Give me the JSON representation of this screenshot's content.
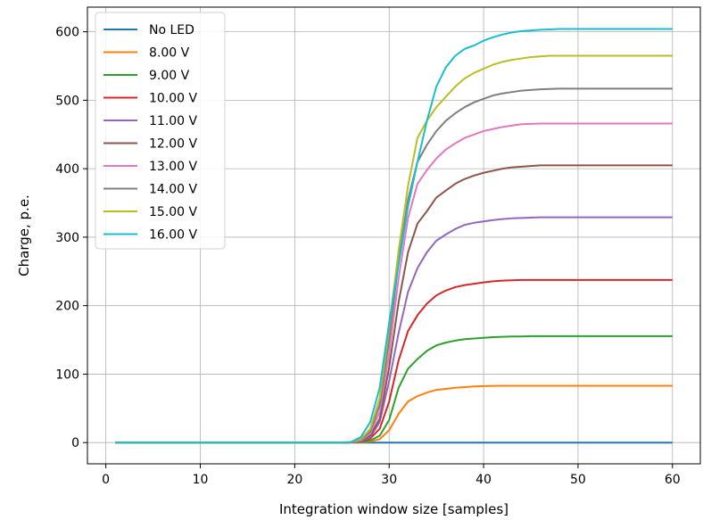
{
  "chart_data": {
    "type": "line",
    "title": "",
    "xlabel": "Integration window size [samples]",
    "ylabel": "Charge, p.e.",
    "xlim": [
      -1.95,
      62.95
    ],
    "ylim": [
      -31,
      636
    ],
    "xticks": [
      0,
      10,
      20,
      30,
      40,
      50,
      60
    ],
    "yticks": [
      0,
      100,
      200,
      300,
      400,
      500,
      600
    ],
    "grid": true,
    "legend_position": "top-left",
    "x": [
      1,
      2,
      3,
      4,
      5,
      6,
      7,
      8,
      9,
      10,
      11,
      12,
      13,
      14,
      15,
      16,
      17,
      18,
      19,
      20,
      21,
      22,
      23,
      24,
      25,
      26,
      27,
      28,
      29,
      30,
      31,
      32,
      33,
      34,
      35,
      36,
      37,
      38,
      39,
      40,
      41,
      42,
      43,
      44,
      45,
      46,
      47,
      48,
      49,
      50,
      51,
      52,
      53,
      54,
      55,
      56,
      57,
      58,
      59,
      60
    ],
    "series": [
      {
        "name": "No LED",
        "color": "#1f77b4",
        "values": [
          0,
          0,
          0,
          0,
          0,
          0,
          0,
          0,
          0,
          0,
          0,
          0,
          0,
          0,
          0,
          0,
          0,
          0,
          0,
          0,
          0,
          0,
          0,
          0,
          0,
          0,
          0,
          0,
          0,
          0,
          0,
          0,
          0,
          0,
          0,
          0,
          0,
          0,
          0,
          0,
          0,
          0,
          0,
          0,
          0,
          0,
          0,
          0,
          0,
          0,
          0,
          0,
          0,
          0,
          0,
          0,
          0,
          0,
          0,
          0
        ]
      },
      {
        "name": "8.00 V",
        "color": "#ff7f0e",
        "values": [
          0,
          0,
          0,
          0,
          0,
          0,
          0,
          0,
          0,
          0,
          0,
          0,
          0,
          0,
          0,
          0,
          0,
          0,
          0,
          0,
          0,
          0,
          0,
          0,
          0,
          0,
          0.3,
          1.5,
          5,
          18,
          42,
          60,
          68,
          73,
          77,
          78.5,
          80,
          81,
          82,
          82.5,
          82.8,
          83,
          83,
          83,
          83,
          83,
          83,
          83,
          83,
          83,
          83,
          83,
          83,
          83,
          83,
          83,
          83,
          83,
          83,
          83
        ]
      },
      {
        "name": "9.00 V",
        "color": "#2ca02c",
        "values": [
          0,
          0,
          0,
          0,
          0,
          0,
          0,
          0,
          0,
          0,
          0,
          0,
          0,
          0,
          0,
          0,
          0,
          0,
          0,
          0,
          0,
          0,
          0,
          0,
          0,
          0.2,
          0.8,
          3,
          10,
          33,
          80,
          108,
          122,
          134,
          142,
          146,
          149,
          151,
          152,
          153,
          154,
          154.5,
          155,
          155,
          155.5,
          155.5,
          155.5,
          155.5,
          155.5,
          155.5,
          155.5,
          155.5,
          155.5,
          155.5,
          155.5,
          155.5,
          155.5,
          155.5,
          155.5,
          155.5
        ]
      },
      {
        "name": "10.00 V",
        "color": "#d62728",
        "values": [
          0,
          0,
          0,
          0,
          0,
          0,
          0,
          0,
          0,
          0,
          0,
          0,
          0,
          0,
          0,
          0,
          0,
          0,
          0,
          0,
          0,
          0,
          0,
          0,
          0,
          0.3,
          1.5,
          6,
          20,
          60,
          120,
          163,
          186,
          203,
          215,
          222,
          227,
          230,
          232,
          234,
          235.5,
          236.5,
          237,
          237.5,
          237.5,
          237.5,
          237.5,
          237.5,
          237.5,
          237.5,
          237.5,
          237.5,
          237.5,
          237.5,
          237.5,
          237.5,
          237.5,
          237.5,
          237.5,
          237.5
        ]
      },
      {
        "name": "11.00 V",
        "color": "#9467bd",
        "values": [
          0,
          0,
          0,
          0,
          0,
          0,
          0,
          0,
          0,
          0,
          0,
          0,
          0,
          0,
          0,
          0,
          0,
          0,
          0,
          0,
          0,
          0,
          0,
          0,
          0,
          0.5,
          2,
          8,
          30,
          90,
          160,
          220,
          255,
          278,
          295,
          304,
          312,
          318,
          321,
          323,
          325,
          326.5,
          327.5,
          328,
          328.5,
          329,
          329,
          329,
          329,
          329,
          329,
          329,
          329,
          329,
          329,
          329,
          329,
          329,
          329,
          329
        ]
      },
      {
        "name": "12.00 V",
        "color": "#8c564b",
        "values": [
          0,
          0,
          0,
          0,
          0,
          0,
          0,
          0,
          0,
          0,
          0,
          0,
          0,
          0,
          0,
          0,
          0,
          0,
          0,
          0,
          0,
          0,
          0,
          0,
          0,
          0.5,
          2.5,
          10,
          35,
          110,
          205,
          278,
          320,
          338,
          358,
          368,
          378,
          385,
          390,
          394,
          397,
          400,
          402,
          403,
          404,
          405,
          405,
          405,
          405,
          405,
          405,
          405,
          405,
          405,
          405,
          405,
          405,
          405,
          405,
          405
        ]
      },
      {
        "name": "13.00 V",
        "color": "#e377c2",
        "values": [
          0,
          0,
          0,
          0,
          0,
          0,
          0,
          0,
          0,
          0,
          0,
          0,
          0,
          0,
          0,
          0,
          0,
          0,
          0,
          0,
          0,
          0,
          0,
          0,
          0,
          0.5,
          3,
          13,
          45,
          130,
          240,
          328,
          378,
          398,
          415,
          428,
          437,
          445,
          450,
          455,
          458,
          461,
          463,
          465,
          465.5,
          466,
          466,
          466,
          466,
          466,
          466,
          466,
          466,
          466,
          466,
          466,
          466,
          466,
          466,
          466
        ]
      },
      {
        "name": "14.00 V",
        "color": "#7f7f7f",
        "values": [
          0,
          0,
          0,
          0,
          0,
          0,
          0,
          0,
          0,
          0,
          0,
          0,
          0,
          0,
          0,
          0,
          0,
          0,
          0,
          0,
          0,
          0,
          0,
          0,
          0,
          0.8,
          4,
          16,
          55,
          150,
          265,
          355,
          410,
          435,
          455,
          470,
          481,
          490,
          497,
          502,
          507,
          510,
          512,
          514,
          515,
          516,
          516.5,
          517,
          517,
          517,
          517,
          517,
          517,
          517,
          517,
          517,
          517,
          517,
          517,
          517
        ]
      },
      {
        "name": "15.00 V",
        "color": "#bcbd22",
        "values": [
          0,
          0,
          0,
          0,
          0,
          0,
          0,
          0,
          0,
          0,
          0,
          0,
          0,
          0,
          0,
          0,
          0,
          0,
          0,
          0,
          0,
          0,
          0,
          0,
          0,
          1,
          5,
          20,
          65,
          168,
          280,
          375,
          445,
          470,
          490,
          505,
          520,
          532,
          540,
          546,
          552,
          556,
          559,
          561,
          563,
          564,
          565,
          565,
          565,
          565,
          565,
          565,
          565,
          565,
          565,
          565,
          565,
          565,
          565,
          565
        ]
      },
      {
        "name": "16.00 V",
        "color": "#17becf",
        "values": [
          0,
          0,
          0,
          0,
          0,
          0,
          0,
          0,
          0,
          0,
          0,
          0,
          0,
          0,
          0,
          0,
          0,
          0,
          0,
          0,
          0,
          0,
          0,
          0,
          0,
          1,
          8,
          30,
          80,
          175,
          260,
          345,
          410,
          470,
          520,
          548,
          565,
          575,
          580,
          587,
          592,
          596,
          599,
          601,
          602,
          603,
          603.5,
          604,
          604,
          604,
          604,
          604,
          604,
          604,
          604,
          604,
          604,
          604,
          604,
          604
        ]
      }
    ]
  }
}
